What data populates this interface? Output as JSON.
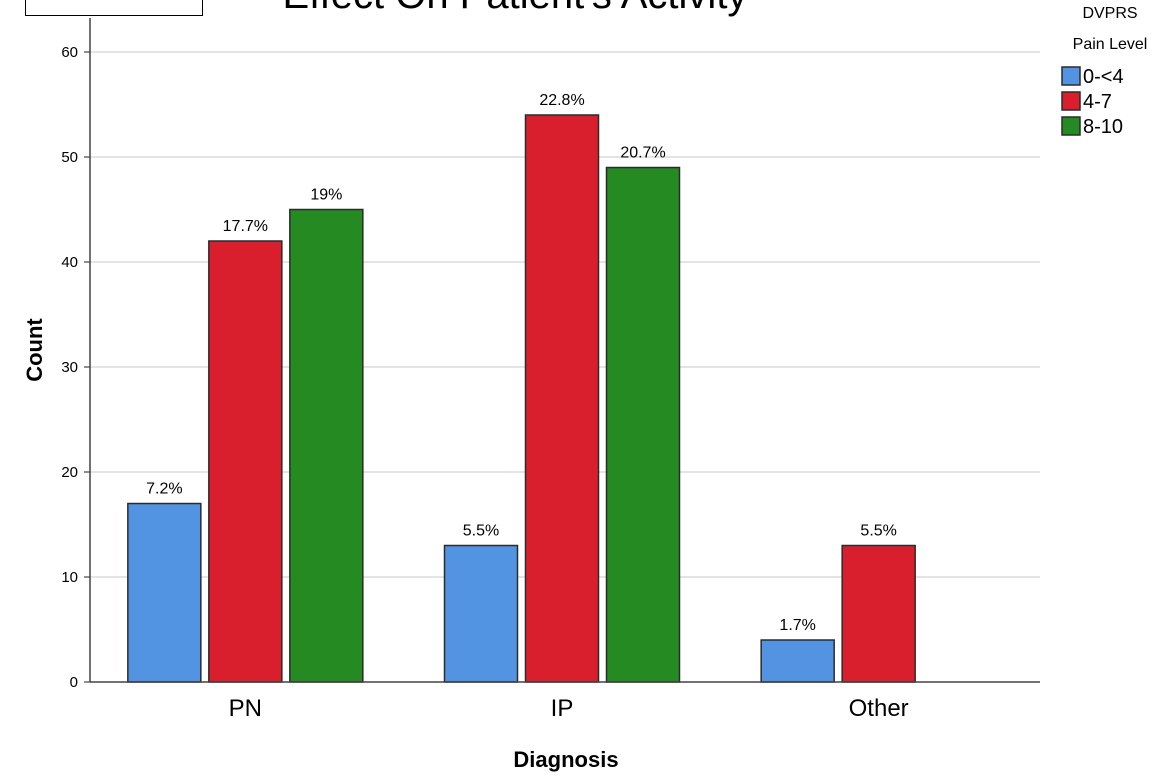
{
  "chart_data": {
    "type": "bar",
    "title": "Effect On Patient's Activity",
    "xlabel": "Diagnosis",
    "ylabel": "Count",
    "ylim": [
      0,
      62
    ],
    "yticks": [
      0,
      10,
      20,
      30,
      40,
      50,
      60
    ],
    "grid": "horizontal",
    "legend_title": [
      "DVPRS",
      "Pain Level"
    ],
    "legend_position": "top-right",
    "categories": [
      "PN",
      "IP",
      "Other"
    ],
    "series": [
      {
        "name": "0-<4",
        "color": "#5294e2",
        "values": [
          17,
          13,
          4
        ],
        "labels": [
          "7.2%",
          "5.5%",
          "1.7%"
        ]
      },
      {
        "name": "4-7",
        "color": "#d91f2e",
        "values": [
          42,
          54,
          13
        ],
        "labels": [
          "17.7%",
          "22.8%",
          "5.5%"
        ]
      },
      {
        "name": "8-10",
        "color": "#258a22",
        "values": [
          45,
          49,
          null
        ],
        "labels": [
          "19%",
          "20.7%",
          ""
        ]
      }
    ]
  }
}
